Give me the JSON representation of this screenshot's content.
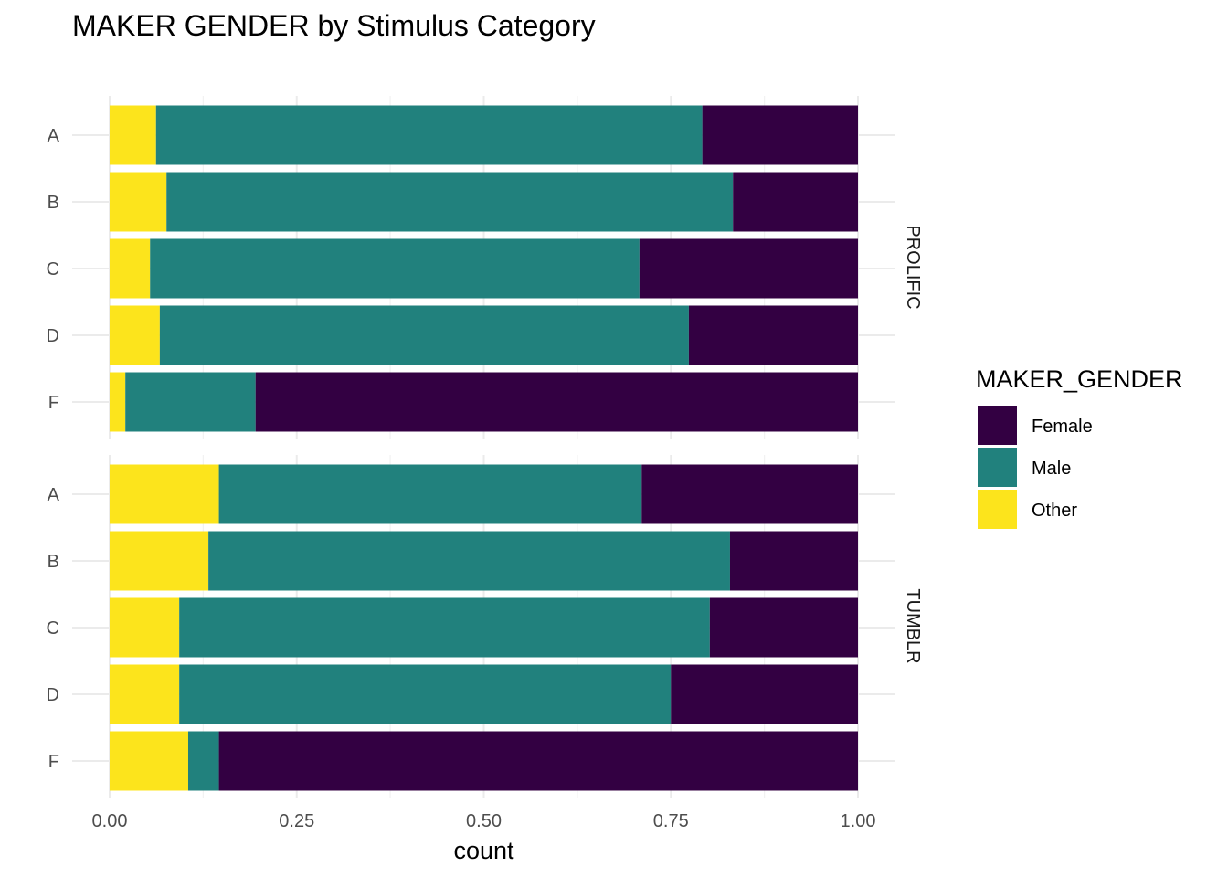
{
  "chart_data": {
    "type": "bar",
    "orientation": "horizontal",
    "stacked": true,
    "title": "MAKER GENDER by Stimulus Category",
    "xlabel": "count",
    "ylabel": "",
    "xlim": [
      0,
      1
    ],
    "x_ticks": [
      "0.00",
      "0.25",
      "0.50",
      "0.75",
      "1.00"
    ],
    "grid": true,
    "legend": {
      "title": "MAKER_GENDER",
      "placement": "right",
      "entries": [
        {
          "label": "Female",
          "color": "#330042"
        },
        {
          "label": "Male",
          "color": "#21817d"
        },
        {
          "label": "Other",
          "color": "#fce41c"
        }
      ]
    },
    "stack_order": [
      "Other",
      "Male",
      "Female"
    ],
    "categories": [
      "A",
      "B",
      "C",
      "D",
      "F"
    ],
    "facets": [
      {
        "label": "PROLIFIC",
        "series": [
          {
            "name": "Other",
            "values": [
              0.062,
              0.076,
              0.054,
              0.067,
              0.021
            ]
          },
          {
            "name": "Male",
            "values": [
              0.73,
              0.757,
              0.654,
              0.707,
              0.174
            ]
          },
          {
            "name": "Female",
            "values": [
              0.208,
              0.167,
              0.292,
              0.226,
              0.805
            ]
          }
        ]
      },
      {
        "label": "TUMBLR",
        "series": [
          {
            "name": "Other",
            "values": [
              0.146,
              0.132,
              0.093,
              0.093,
              0.105
            ]
          },
          {
            "name": "Male",
            "values": [
              0.565,
              0.697,
              0.709,
              0.657,
              0.041
            ]
          },
          {
            "name": "Female",
            "values": [
              0.289,
              0.171,
              0.198,
              0.25,
              0.854
            ]
          }
        ]
      }
    ]
  }
}
